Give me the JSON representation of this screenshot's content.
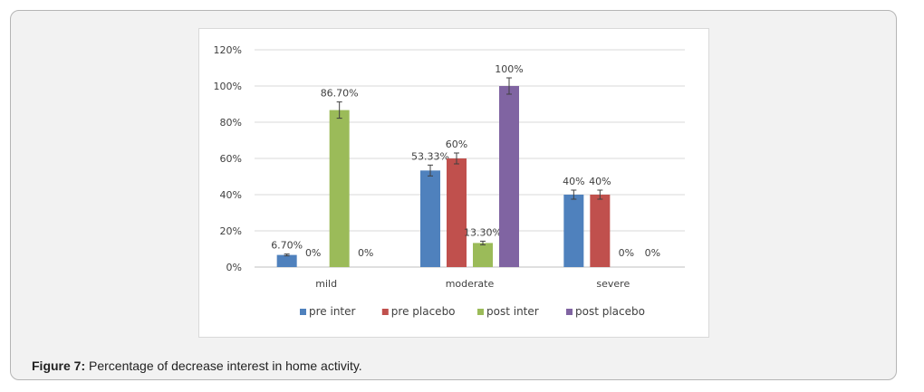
{
  "caption": {
    "label": "Figure 7:",
    "text": "Percentage of decrease interest in home activity."
  },
  "chart_data": {
    "type": "bar",
    "title": "",
    "xlabel": "",
    "ylabel": "",
    "ylim": [
      0,
      120
    ],
    "y_ticks": [
      "0%",
      "20%",
      "40%",
      "60%",
      "80%",
      "100%",
      "120%"
    ],
    "grid": true,
    "legend_position": "bottom",
    "categories": [
      "mild",
      "moderate",
      "severe"
    ],
    "series": [
      {
        "name": "pre inter",
        "color": "#4f81bd",
        "values": [
          6.7,
          53.33,
          40
        ],
        "labels": [
          "6.70%",
          "53.33%",
          "40%"
        ],
        "error": [
          0.5,
          3,
          2.5
        ]
      },
      {
        "name": "pre placebo",
        "color": "#c0504d",
        "values": [
          0,
          60,
          40
        ],
        "labels": [
          "0%",
          "60%",
          "40%"
        ],
        "error": [
          0,
          3,
          2.5
        ]
      },
      {
        "name": "post inter",
        "color": "#9bbb59",
        "values": [
          86.7,
          13.3,
          0
        ],
        "labels": [
          "86.70%",
          "13.30%",
          "0%"
        ],
        "error": [
          4.5,
          1,
          0
        ]
      },
      {
        "name": "post placebo",
        "color": "#8064a2",
        "values": [
          0,
          100,
          0
        ],
        "labels": [
          "0%",
          "100%",
          "0%"
        ],
        "error": [
          0,
          4.5,
          0
        ]
      }
    ]
  }
}
